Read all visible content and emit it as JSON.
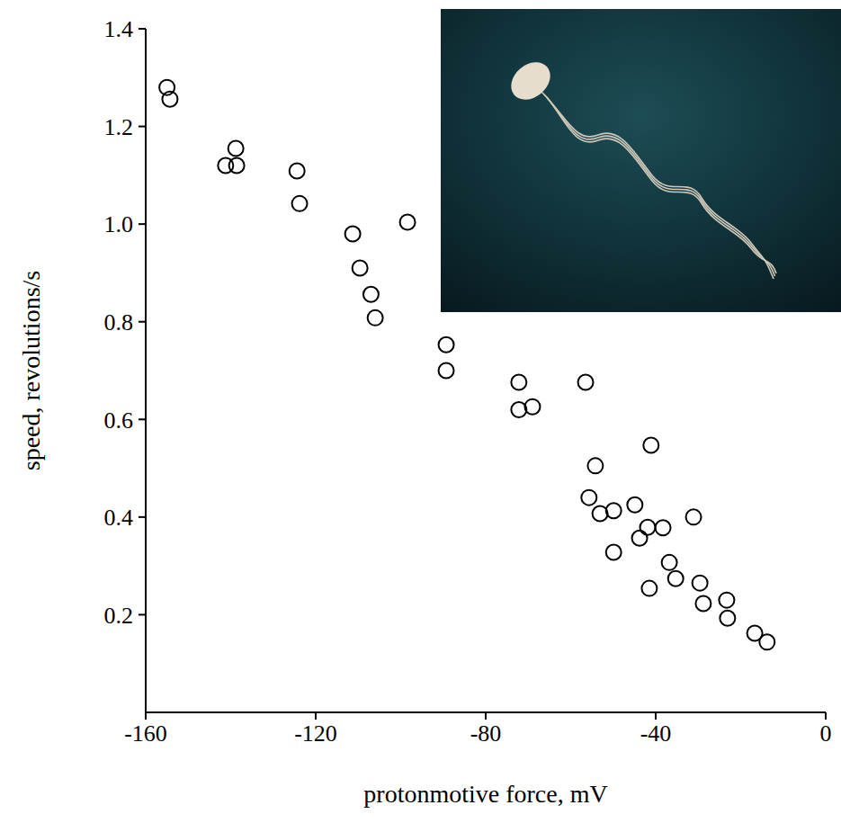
{
  "chart_data": {
    "type": "scatter",
    "x_label": "protonmotive force, mV",
    "y_label": "speed, revolutions/s",
    "x": [
      -155,
      -154.3,
      -141.2,
      -138.8,
      -138.6,
      -124.4,
      -123.8,
      -111.3,
      -109.6,
      -107,
      -106,
      -98.4,
      -89.3,
      -89.3,
      -72.2,
      -72.2,
      -69,
      -56.5,
      -55.7,
      -54.2,
      -53.1,
      -49.9,
      -49.9,
      -44.9,
      -43.8,
      -41.9,
      -41.5,
      -41.1,
      -38.3,
      -36.8,
      -35.3,
      -31.1,
      -29.6,
      -28.8,
      -23.3,
      -23.1,
      -16.7,
      -13.8
    ],
    "values": [
      1.28,
      1.256,
      1.12,
      1.155,
      1.12,
      1.109,
      1.042,
      0.98,
      0.91,
      0.856,
      0.808,
      1.004,
      0.753,
      0.7,
      0.676,
      0.62,
      0.626,
      0.676,
      0.44,
      0.505,
      0.407,
      0.413,
      0.328,
      0.425,
      0.357,
      0.379,
      0.254,
      0.547,
      0.378,
      0.307,
      0.274,
      0.4,
      0.265,
      0.223,
      0.23,
      0.193,
      0.162,
      0.144
    ],
    "color": "#000000",
    "marker": "open_circle",
    "xlim": [
      -160,
      0
    ],
    "xticks": [
      -160,
      -120,
      -80,
      -40,
      0
    ],
    "ylim": [
      0,
      1.4
    ],
    "yticks": [
      0.2,
      0.4,
      0.6,
      0.8,
      {
        "value": 1,
        "label": "1.0"
      },
      1.2,
      1.4
    ],
    "grid": false
  }
}
